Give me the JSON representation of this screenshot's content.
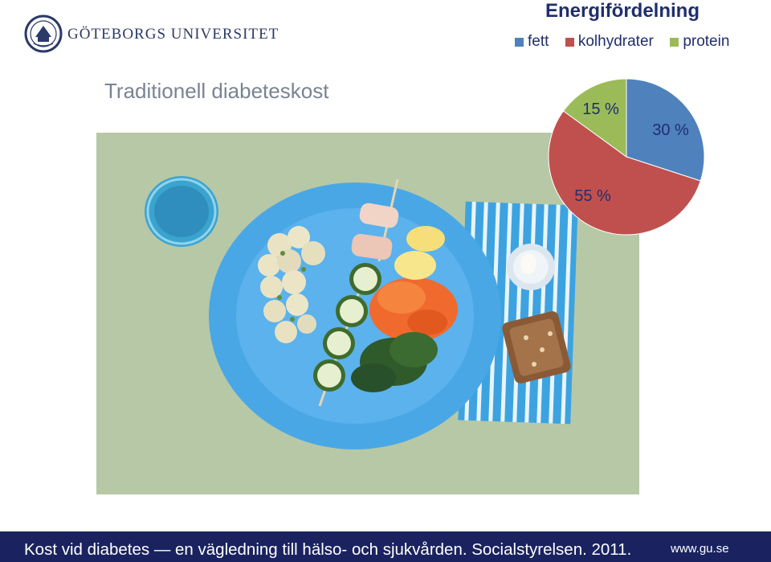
{
  "header": {
    "university_name": "GÖTEBORGS UNIVERSITET"
  },
  "slide": {
    "title": "Traditionell diabeteskost"
  },
  "photo": {
    "description_icon": "meal-plate-photo"
  },
  "chart_data": {
    "type": "pie",
    "title": "Energifördelning",
    "legend_position": "top",
    "slices": [
      {
        "name": "fett",
        "value": 30,
        "label": "30 %",
        "color": "#4f81bd"
      },
      {
        "name": "kolhydrater",
        "value": 55,
        "label": "55 %",
        "color": "#c0504d"
      },
      {
        "name": "protein",
        "value": 15,
        "label": "15 %",
        "color": "#9bbb59"
      }
    ]
  },
  "footer": {
    "citation": "Kost vid diabetes — en vägledning till hälso- och sjukvården. Socialstyrelsen. 2011.",
    "url": "www.gu.se"
  }
}
